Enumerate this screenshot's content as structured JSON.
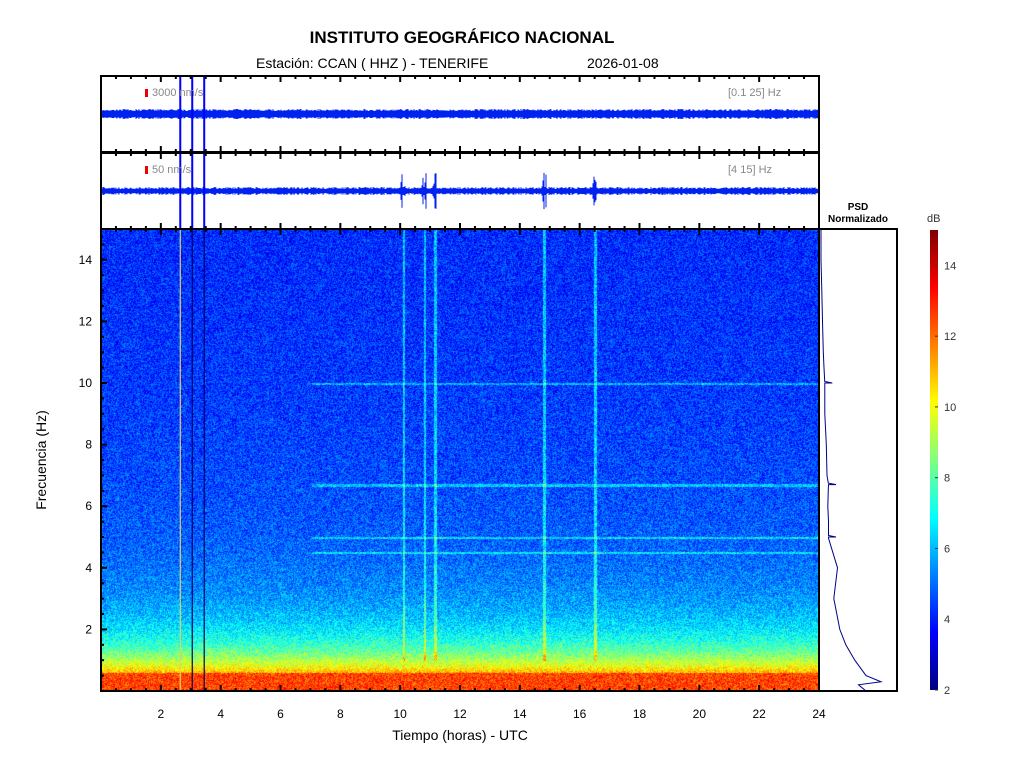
{
  "header": {
    "title": "INSTITUTO GEOGRÁFICO NACIONAL",
    "station": "Estación:  CCAN ( HHZ ) - TENERIFE",
    "date": "2026-01-08"
  },
  "traces": [
    {
      "scale": "3000 nm/s",
      "band": "[0.1 25] Hz"
    },
    {
      "scale": "50 nm/s",
      "band": "[4 15] Hz"
    }
  ],
  "chart_data": {
    "type": "heatmap",
    "title": "INSTITUTO GEOGRÁFICO NACIONAL",
    "xlabel": "Tiempo (horas) - UTC",
    "ylabel": "Frecuencia  (Hz)",
    "xlim": [
      0,
      24
    ],
    "ylim": [
      0,
      15
    ],
    "xticks": [
      2,
      4,
      6,
      8,
      10,
      12,
      14,
      16,
      18,
      20,
      22,
      24
    ],
    "yticks": [
      2,
      4,
      6,
      8,
      10,
      12,
      14
    ],
    "colorbar": {
      "label": "dB",
      "range": [
        2,
        15
      ],
      "ticks": [
        2,
        4,
        6,
        8,
        10,
        12,
        14
      ]
    },
    "psd_title": "PSD Normalizado",
    "psd": {
      "freq": [
        0,
        0.2,
        0.3,
        0.5,
        1,
        1.5,
        2,
        3,
        4,
        5,
        5.5,
        6,
        6.7,
        7,
        8,
        9,
        10,
        10.5,
        11,
        12,
        13,
        14,
        15
      ],
      "value": [
        0.6,
        0.5,
        0.8,
        0.6,
        0.45,
        0.33,
        0.25,
        0.17,
        0.12,
        0.1,
        0.1,
        0.09,
        0.1,
        0.08,
        0.07,
        0.05,
        0.05,
        0.04,
        0.03,
        0.02,
        0.01,
        0.0,
        0.0
      ]
    },
    "psd_peaks_hz": [
      10.0,
      6.7,
      5.0
    ],
    "harmonic_lines_hz": [
      10.0,
      6.7,
      5.0,
      4.5
    ],
    "broadband_events_h": [
      2.65,
      3.05,
      3.45
    ],
    "local_events_h": [
      10.1,
      10.8,
      11.15,
      14.8,
      16.5
    ]
  }
}
